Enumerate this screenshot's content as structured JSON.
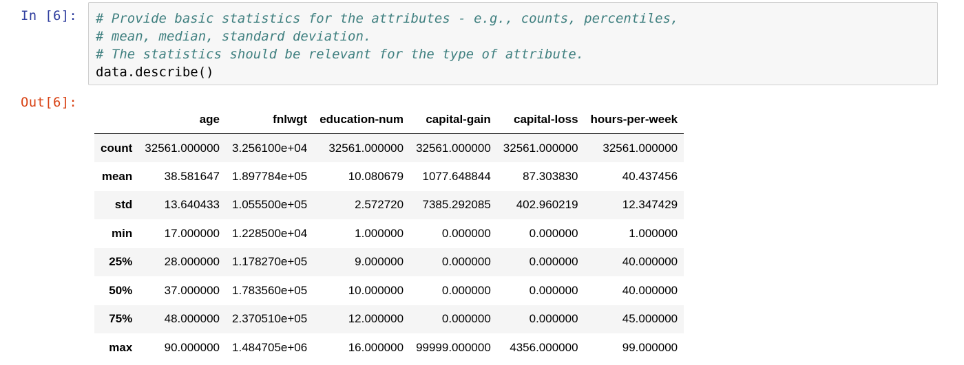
{
  "cell": {
    "in_prompt": "In [6]:",
    "out_prompt": "Out[6]:",
    "code_lines": [
      "# Provide basic statistics for the attributes - e.g., counts, percentiles,",
      "# mean, median, standard deviation.",
      "# The statistics should be relevant for the type of attribute.",
      "data.describe()"
    ]
  },
  "output_table": {
    "corner": "",
    "columns": [
      "age",
      "fnlwgt",
      "education-num",
      "capital-gain",
      "capital-loss",
      "hours-per-week"
    ],
    "rows": [
      {
        "label": "count",
        "values": [
          "32561.000000",
          "3.256100e+04",
          "32561.000000",
          "32561.000000",
          "32561.000000",
          "32561.000000"
        ]
      },
      {
        "label": "mean",
        "values": [
          "38.581647",
          "1.897784e+05",
          "10.080679",
          "1077.648844",
          "87.303830",
          "40.437456"
        ]
      },
      {
        "label": "std",
        "values": [
          "13.640433",
          "1.055500e+05",
          "2.572720",
          "7385.292085",
          "402.960219",
          "12.347429"
        ]
      },
      {
        "label": "min",
        "values": [
          "17.000000",
          "1.228500e+04",
          "1.000000",
          "0.000000",
          "0.000000",
          "1.000000"
        ]
      },
      {
        "label": "25%",
        "values": [
          "28.000000",
          "1.178270e+05",
          "9.000000",
          "0.000000",
          "0.000000",
          "40.000000"
        ]
      },
      {
        "label": "50%",
        "values": [
          "37.000000",
          "1.783560e+05",
          "10.000000",
          "0.000000",
          "0.000000",
          "40.000000"
        ]
      },
      {
        "label": "75%",
        "values": [
          "48.000000",
          "2.370510e+05",
          "12.000000",
          "0.000000",
          "0.000000",
          "45.000000"
        ]
      },
      {
        "label": "max",
        "values": [
          "90.000000",
          "1.484705e+06",
          "16.000000",
          "99999.000000",
          "4356.000000",
          "99.000000"
        ]
      }
    ]
  },
  "colors": {
    "in_prompt": "#303f9f",
    "out_prompt": "#d84315",
    "comment": "#408080",
    "input_bg": "#f7f7f7",
    "row_stripe": "#f5f5f5"
  }
}
